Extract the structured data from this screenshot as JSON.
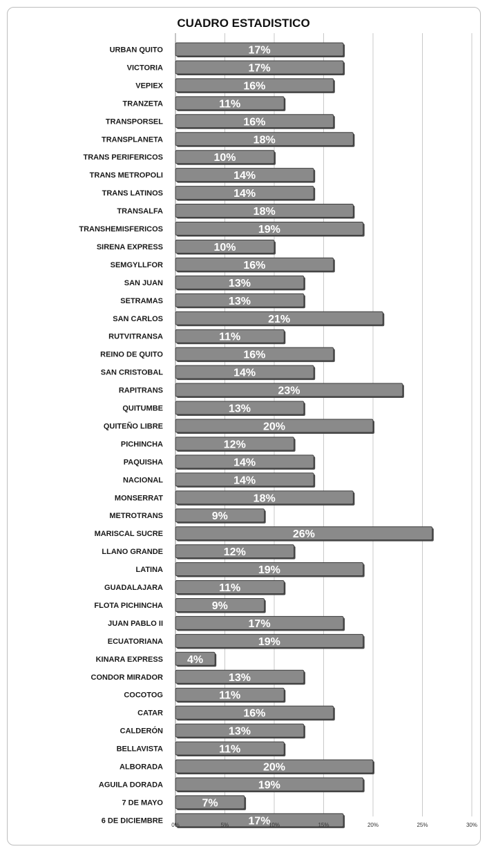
{
  "chart_data": {
    "type": "bar",
    "orientation": "horizontal",
    "title": "CUADRO ESTADISTICO",
    "categories": [
      "URBAN QUITO",
      "VICTORIA",
      "VEPIEX",
      "TRANZETA",
      "TRANSPORSEL",
      "TRANSPLANETA",
      "TRANS PERIFERICOS",
      "TRANS METROPOLI",
      "TRANS LATINOS",
      "TRANSALFA",
      "TRANSHEMISFERICOS",
      "SIRENA EXPRESS",
      "SEMGYLLFOR",
      "SAN JUAN",
      "SETRAMAS",
      "SAN CARLOS",
      "RUTVITRANSA",
      "REINO DE QUITO",
      "SAN CRISTOBAL",
      "RAPITRANS",
      "QUITUMBE",
      "QUITEÑO LIBRE",
      "PICHINCHA",
      "PAQUISHA",
      "NACIONAL",
      "MONSERRAT",
      "METROTRANS",
      "MARISCAL SUCRE",
      "LLANO GRANDE",
      "LATINA",
      "GUADALAJARA",
      "FLOTA PICHINCHA",
      "JUAN PABLO II",
      "ECUATORIANA",
      "KINARA EXPRESS",
      "CONDOR MIRADOR",
      "COCOTOG",
      "CATAR",
      "CALDERÓN",
      "BELLAVISTA",
      "ALBORADA",
      "AGUILA DORADA",
      "7 DE MAYO",
      "6 DE DICIEMBRE"
    ],
    "values": [
      17,
      17,
      16,
      11,
      16,
      18,
      10,
      14,
      14,
      18,
      19,
      10,
      16,
      13,
      13,
      21,
      11,
      16,
      14,
      23,
      13,
      20,
      12,
      14,
      14,
      18,
      9,
      26,
      12,
      19,
      11,
      9,
      17,
      19,
      4,
      13,
      11,
      16,
      13,
      11,
      20,
      19,
      7,
      17
    ],
    "data_labels": [
      "17%",
      "17%",
      "16%",
      "11%",
      "16%",
      "18%",
      "10%",
      "14%",
      "14%",
      "18%",
      "19%",
      "10%",
      "16%",
      "13%",
      "13%",
      "21%",
      "11%",
      "16%",
      "14%",
      "23%",
      "13%",
      "20%",
      "12%",
      "14%",
      "14%",
      "18%",
      "9%",
      "26%",
      "12%",
      "19%",
      "11%",
      "9%",
      "17%",
      "19%",
      "4%",
      "13%",
      "11%",
      "16%",
      "13%",
      "11%",
      "20%",
      "19%",
      "7%",
      "17%"
    ],
    "x_ticks": [
      0,
      5,
      10,
      15,
      20,
      25,
      30
    ],
    "x_tick_labels": [
      "0%",
      "5%",
      "10%",
      "15%",
      "20%",
      "25%",
      "30%"
    ],
    "xlim": [
      0,
      30
    ],
    "xlabel": "",
    "ylabel": "",
    "grid": true,
    "legend": "none",
    "colors": {
      "bar_fill": "#8a8a8a",
      "bar_edge": "#3a3a3a",
      "bar_shadow": "#4a4a4a",
      "grid": "#c8c8c8",
      "label": "#ffffff"
    }
  }
}
